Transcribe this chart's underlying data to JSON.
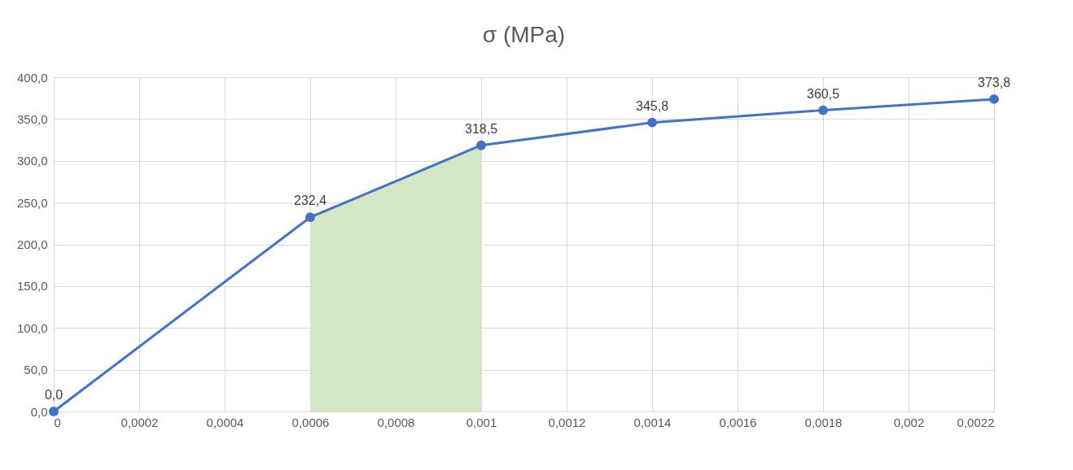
{
  "chart_data": {
    "type": "line",
    "title": "σ (MPa)",
    "x": [
      0,
      0.0006,
      0.001,
      0.0014,
      0.0018,
      0.0022
    ],
    "series": [
      {
        "type": "area",
        "marker": "none",
        "color": "#d3e6c5",
        "x": [
          0.0006,
          0.001
        ],
        "values": [
          232.4,
          318.5
        ]
      },
      {
        "color": "#4472c4",
        "values": [
          0,
          232.4,
          318.5,
          345.8,
          360.5,
          373.8
        ],
        "value_labels": [
          "0,0",
          "232,4",
          "318,5",
          "345,8",
          "360,5",
          "373,8"
        ]
      }
    ],
    "xlim": [
      0,
      0.0022
    ],
    "xticks": [
      {
        "value": 0,
        "label": "0"
      },
      {
        "value": 0.0002,
        "label": "0,0002"
      },
      {
        "value": 0.0004,
        "label": "0,0004"
      },
      {
        "value": 0.0006,
        "label": "0,0006"
      },
      {
        "value": 0.0008,
        "label": "0,0008"
      },
      {
        "value": 0.001,
        "label": "0,001"
      },
      {
        "value": 0.0012,
        "label": "0,0012"
      },
      {
        "value": 0.0014,
        "label": "0,0014"
      },
      {
        "value": 0.0016,
        "label": "0,0016"
      },
      {
        "value": 0.0018,
        "label": "0,0018"
      },
      {
        "value": 0.002,
        "label": "0,002"
      },
      {
        "value": 0.0022,
        "label": "0,0022"
      }
    ],
    "ylim": [
      0,
      400
    ],
    "yticks": [
      {
        "value": 0,
        "label": "0,0"
      },
      {
        "value": 50,
        "label": "50,0"
      },
      {
        "value": 100,
        "label": "100,0"
      },
      {
        "value": 150,
        "label": "150,0"
      },
      {
        "value": 200,
        "label": "200,0"
      },
      {
        "value": 250,
        "label": "250,0"
      },
      {
        "value": 300,
        "label": "300,0"
      },
      {
        "value": 350,
        "label": "350,0"
      },
      {
        "value": 400,
        "label": "400,0"
      }
    ],
    "grid": true,
    "marker": "circle",
    "line_style": "solid"
  }
}
